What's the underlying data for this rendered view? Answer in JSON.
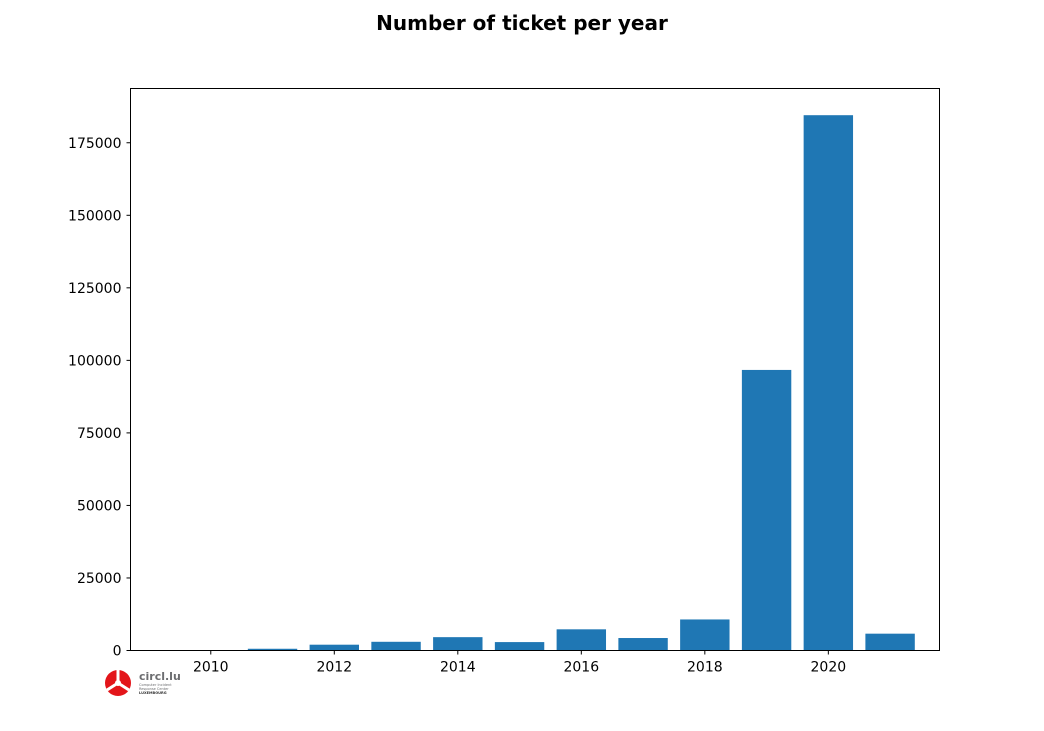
{
  "chart_data": {
    "type": "bar",
    "title": "Number of ticket per year",
    "xlabel": "",
    "ylabel": "",
    "x": [
      2010,
      2011,
      2012,
      2013,
      2014,
      2015,
      2016,
      2017,
      2018,
      2019,
      2020,
      2021
    ],
    "values": [
      0,
      600,
      2000,
      3000,
      4600,
      2900,
      7300,
      4300,
      10700,
      96700,
      184500,
      5800
    ],
    "xlim": [
      2008.7,
      2021.8
    ],
    "ylim": [
      0,
      193700
    ],
    "xticks": [
      "2010",
      "2012",
      "2014",
      "2016",
      "2018",
      "2020"
    ],
    "yticks": [
      "0",
      "25000",
      "50000",
      "75000",
      "100000",
      "125000",
      "150000",
      "175000"
    ],
    "bar_color": "#1f77b4",
    "grid": false
  },
  "logo": {
    "name": "circl.lu",
    "line1": "Computer Incident",
    "line2": "Response Center",
    "line3": "LUXEMBOURG",
    "icon": "circl-logo-icon",
    "color": "#e3151a"
  }
}
